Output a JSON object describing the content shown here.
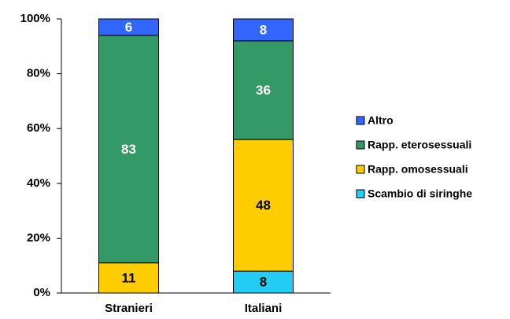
{
  "chart_data": {
    "type": "stacked_bar",
    "categories": [
      "Stranieri",
      "Italiani"
    ],
    "series": [
      {
        "name": "Scambio di siringhe",
        "color": "#22ccf2",
        "values": [
          null,
          8
        ]
      },
      {
        "name": "Rapp. omosessuali",
        "color": "#ffcc00",
        "values": [
          11,
          48
        ]
      },
      {
        "name": "Rapp. eterosessuali",
        "color": "#339966",
        "values": [
          83,
          36
        ]
      },
      {
        "name": "Altro",
        "color": "#3366ff",
        "values": [
          6,
          8
        ]
      }
    ],
    "ylim": [
      0,
      100
    ],
    "yticks": [
      {
        "value": 0,
        "label": "0%"
      },
      {
        "value": 20,
        "label": "20%"
      },
      {
        "value": 40,
        "label": "40%"
      },
      {
        "value": 60,
        "label": "60%"
      },
      {
        "value": 80,
        "label": "80%"
      },
      {
        "value": 100,
        "label": "100%"
      }
    ],
    "legend": "right"
  }
}
